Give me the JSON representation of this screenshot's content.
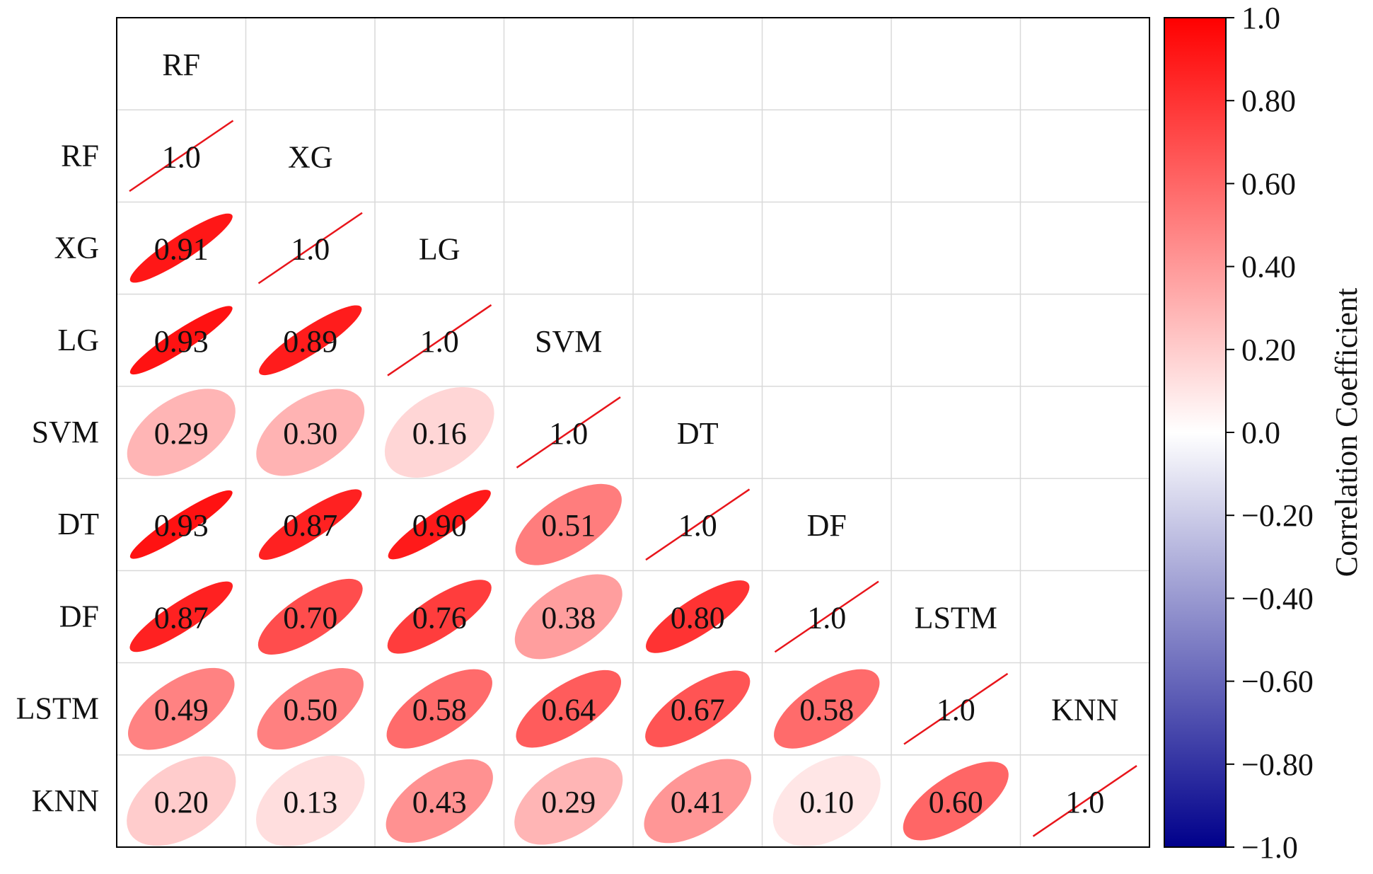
{
  "chart_data": {
    "type": "heatmap",
    "variant": "lower-triangle ellipse correlation matrix",
    "variables": [
      "RF",
      "XG",
      "LG",
      "SVM",
      "DT",
      "DF",
      "LSTM",
      "KNN"
    ],
    "matrix": [
      [
        1.0,
        0.91,
        0.93,
        0.29,
        0.93,
        0.87,
        0.49,
        0.2
      ],
      [
        0.91,
        1.0,
        0.89,
        0.3,
        0.87,
        0.7,
        0.5,
        0.13
      ],
      [
        0.93,
        0.89,
        1.0,
        0.16,
        0.9,
        0.76,
        0.58,
        0.43
      ],
      [
        0.29,
        0.3,
        0.16,
        1.0,
        0.51,
        0.38,
        0.64,
        0.29
      ],
      [
        0.93,
        0.87,
        0.9,
        0.51,
        1.0,
        0.8,
        0.67,
        0.41
      ],
      [
        0.87,
        0.7,
        0.76,
        0.38,
        0.8,
        1.0,
        0.58,
        0.1
      ],
      [
        0.49,
        0.5,
        0.58,
        0.64,
        0.67,
        0.58,
        1.0,
        0.6
      ],
      [
        0.2,
        0.13,
        0.43,
        0.29,
        0.41,
        0.1,
        0.6,
        1.0
      ]
    ],
    "value_labels": [
      [
        "1.0"
      ],
      [
        "0.91",
        "1.0"
      ],
      [
        "0.93",
        "0.89",
        "1.0"
      ],
      [
        "0.29",
        "0.30",
        "0.16",
        "1.0"
      ],
      [
        "0.93",
        "0.87",
        "0.90",
        "0.51",
        "1.0"
      ],
      [
        "0.87",
        "0.70",
        "0.76",
        "0.38",
        "0.80",
        "1.0"
      ],
      [
        "0.49",
        "0.50",
        "0.58",
        "0.64",
        "0.67",
        "0.58",
        "1.0"
      ],
      [
        "0.20",
        "0.13",
        "0.43",
        "0.29",
        "0.41",
        "0.10",
        "0.60",
        "1.0"
      ]
    ],
    "colorbar": {
      "label": "Correlation Coefficient",
      "range": [
        -1.0,
        1.0
      ],
      "ticks": [
        1.0,
        0.8,
        0.6,
        0.4,
        0.2,
        0.0,
        -0.2,
        -0.4,
        -0.6,
        -0.8,
        -1.0
      ],
      "tick_labels": [
        "1.0",
        "0.80",
        "0.60",
        "0.40",
        "0.20",
        "0.0",
        "−0.20",
        "−0.40",
        "−0.60",
        "−0.80",
        "−1.0"
      ],
      "colors": {
        "negative": "#00008b",
        "zero": "#ffffff",
        "positive": "#ff0000"
      }
    },
    "colors": {
      "diagonal_line": "#e8151b",
      "grid": "#d9d9d9",
      "axis": "#000000"
    }
  }
}
